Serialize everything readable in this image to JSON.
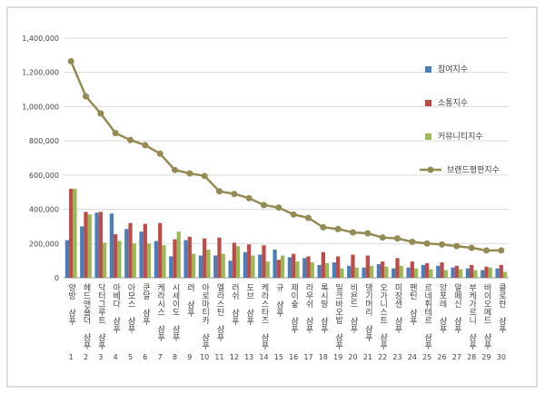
{
  "chart_data": {
    "type": "bar_line",
    "categories": [
      "양방 샴푸",
      "헤드앤숄더 샴푸",
      "닥터그루트 샴푸",
      "아베다 샴푸",
      "아모스 샴푸",
      "쿤달 샴푸",
      "케라시스 샴푸",
      "시세이도 샴푸",
      "려 샴푸",
      "아로마티카 샴푸",
      "엘라스틴 샴푸",
      "러쉬 샴푸",
      "도브 샴푸",
      "케라스타즈 샴푸",
      "규 샴푸",
      "제이숲 샴푸",
      "라우쉬 샴푸",
      "록시땅 샴푸",
      "밀크바오밥 샴푸",
      "비욘드 샴푸",
      "댕기머리 샴푸",
      "오가니스트 샴푸",
      "미장센 샴푸",
      "팬틴 샴푸",
      "르네휘테르 샴푸",
      "앙포레 샴푸",
      "알페신 샴푸",
      "부케가르니 샴푸",
      "바이오메드 샴푸",
      "클로란 샴푸"
    ],
    "ranks": [
      1,
      2,
      3,
      4,
      5,
      6,
      7,
      8,
      9,
      10,
      11,
      12,
      13,
      14,
      15,
      16,
      17,
      18,
      19,
      20,
      21,
      22,
      23,
      24,
      25,
      26,
      27,
      28,
      29,
      30
    ],
    "series": [
      {
        "name": "참여지수",
        "kind": "bar",
        "color": "#4a7ebb",
        "values": [
          220000,
          300000,
          380000,
          375000,
          285000,
          270000,
          215000,
          125000,
          220000,
          130000,
          130000,
          100000,
          150000,
          135000,
          165000,
          120000,
          115000,
          75000,
          90000,
          70000,
          60000,
          80000,
          55000,
          60000,
          75000,
          70000,
          60000,
          55000,
          45000,
          55000
        ]
      },
      {
        "name": "소통지수",
        "kind": "bar",
        "color": "#be4b48",
        "values": [
          520000,
          385000,
          385000,
          255000,
          320000,
          315000,
          320000,
          225000,
          240000,
          230000,
          235000,
          205000,
          195000,
          190000,
          105000,
          140000,
          125000,
          150000,
          125000,
          135000,
          130000,
          95000,
          115000,
          95000,
          85000,
          90000,
          70000,
          75000,
          65000,
          75000
        ]
      },
      {
        "name": "커뮤니티지수",
        "kind": "bar",
        "color": "#98b954",
        "values": [
          520000,
          370000,
          205000,
          215000,
          200000,
          200000,
          190000,
          270000,
          140000,
          165000,
          140000,
          185000,
          130000,
          95000,
          130000,
          95000,
          90000,
          85000,
          55000,
          60000,
          70000,
          65000,
          70000,
          55000,
          50000,
          45000,
          50000,
          45000,
          60000,
          35000
        ]
      },
      {
        "name": "브랜드평판지수",
        "kind": "line",
        "color": "#948a54",
        "values": [
          1265000,
          1060000,
          960000,
          845000,
          805000,
          775000,
          725000,
          630000,
          610000,
          595000,
          505000,
          490000,
          465000,
          425000,
          410000,
          370000,
          350000,
          295000,
          285000,
          265000,
          260000,
          235000,
          230000,
          210000,
          200000,
          195000,
          185000,
          175000,
          160000,
          160000
        ]
      }
    ],
    "ylim": [
      0,
      1400000
    ],
    "yticks": [
      {
        "value": 0,
        "label": "0"
      },
      {
        "value": 200000,
        "label": "200,000"
      },
      {
        "value": 400000,
        "label": "400,000"
      },
      {
        "value": 600000,
        "label": "600,000"
      },
      {
        "value": 800000,
        "label": "800,000"
      },
      {
        "value": 1000000,
        "label": "1,000,000"
      },
      {
        "value": 1200000,
        "label": "1,200,000"
      },
      {
        "value": 1400000,
        "label": "1,400,000"
      }
    ],
    "grid": true,
    "legend": "right"
  }
}
